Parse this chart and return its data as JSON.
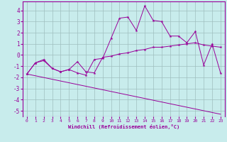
{
  "xlabel": "Windchill (Refroidissement éolien,°C)",
  "bg_color": "#c8ecec",
  "line_color": "#990099",
  "grid_color": "#9fbfbf",
  "xlim": [
    -0.5,
    23.5
  ],
  "ylim": [
    -5.5,
    4.8
  ],
  "yticks": [
    -5,
    -4,
    -3,
    -2,
    -1,
    0,
    1,
    2,
    3,
    4
  ],
  "xticks": [
    0,
    1,
    2,
    3,
    4,
    5,
    6,
    7,
    8,
    9,
    10,
    11,
    12,
    13,
    14,
    15,
    16,
    17,
    18,
    19,
    20,
    21,
    22,
    23
  ],
  "line1_x": [
    0,
    1,
    2,
    3,
    4,
    5,
    6,
    7,
    8,
    9,
    10,
    11,
    12,
    13,
    14,
    15,
    16,
    17,
    18,
    19,
    20,
    21,
    22,
    23
  ],
  "line1_y": [
    -1.7,
    -0.7,
    -0.5,
    -1.2,
    -1.5,
    -1.3,
    -0.6,
    -1.5,
    -1.6,
    -0.2,
    -0.1,
    0.1,
    0.2,
    0.4,
    0.5,
    0.7,
    0.7,
    0.8,
    0.9,
    1.0,
    1.1,
    0.9,
    0.8,
    0.7
  ],
  "line2_x": [
    0,
    1,
    2,
    3,
    4,
    5,
    6,
    7,
    8,
    9,
    10,
    11,
    12,
    13,
    14,
    15,
    16,
    17,
    18,
    19,
    20,
    21,
    22,
    23
  ],
  "line2_y": [
    -1.7,
    -0.7,
    -0.4,
    -1.2,
    -1.5,
    -1.3,
    -1.6,
    -1.8,
    -0.4,
    -0.3,
    1.5,
    3.3,
    3.4,
    2.2,
    4.4,
    3.1,
    3.0,
    1.7,
    1.7,
    1.1,
    2.1,
    -0.9,
    1.0,
    -1.6
  ],
  "line3_x": [
    0,
    23
  ],
  "line3_y": [
    -1.7,
    -5.3
  ]
}
